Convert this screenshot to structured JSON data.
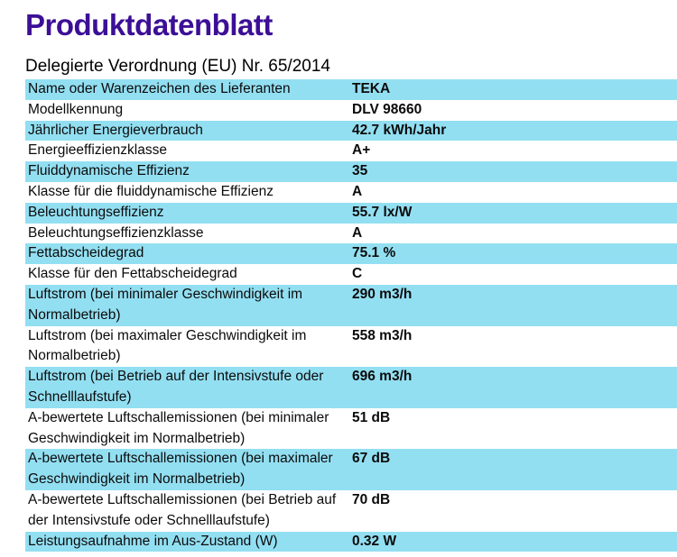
{
  "page": {
    "title": "Produktdatenblatt",
    "subtitle": "Delegierte Verordnung (EU) Nr. 65/2014"
  },
  "colors": {
    "accent_row": "#93dff2",
    "title": "#3c0f96",
    "text": "#0b0b0b"
  },
  "table": {
    "rows": [
      {
        "label": "Name oder Warenzeichen des Lieferanten",
        "value": "TEKA"
      },
      {
        "label": "Modellkennung",
        "value": "DLV 98660"
      },
      {
        "label": "Jährlicher Energieverbrauch",
        "value": "42.7 kWh/Jahr"
      },
      {
        "label": "Energieeffizienzklasse",
        "value": "A+"
      },
      {
        "label": "Fluiddynamische Effizienz",
        "value": "35"
      },
      {
        "label": "Klasse für die fluiddynamische Effizienz",
        "value": "A"
      },
      {
        "label": "Beleuchtungseffizienz",
        "value": "55.7 lx/W"
      },
      {
        "label": "Beleuchtungseffizienzklasse",
        "value": "A"
      },
      {
        "label": "Fettabscheidegrad",
        "value": "75.1 %"
      },
      {
        "label": "Klasse für den Fettabscheidegrad",
        "value": "C"
      },
      {
        "label": "Luftstrom (bei minimaler Geschwindigkeit im Normalbetrieb)",
        "value": "290 m3/h"
      },
      {
        "label": "Luftstrom (bei maximaler Geschwindigkeit im Normalbetrieb)",
        "value": "558 m3/h"
      },
      {
        "label": "Luftstrom (bei Betrieb auf der Intensivstufe oder Schnelllaufstufe)",
        "value": "696 m3/h"
      },
      {
        "label": "A-bewertete Luftschallemissionen (bei minimaler Geschwindigkeit im Normalbetrieb)",
        "value": "51 dB"
      },
      {
        "label": "A-bewertete Luftschallemissionen (bei maximaler Geschwindigkeit im Normalbetrieb)",
        "value": "67 dB"
      },
      {
        "label": "A-bewertete Luftschallemissionen (bei Betrieb auf der Intensivstufe oder Schnelllaufstufe)",
        "value": "70 dB"
      },
      {
        "label": "Leistungsaufnahme im Aus-Zustand (W)",
        "value": "0.32 W"
      }
    ]
  }
}
